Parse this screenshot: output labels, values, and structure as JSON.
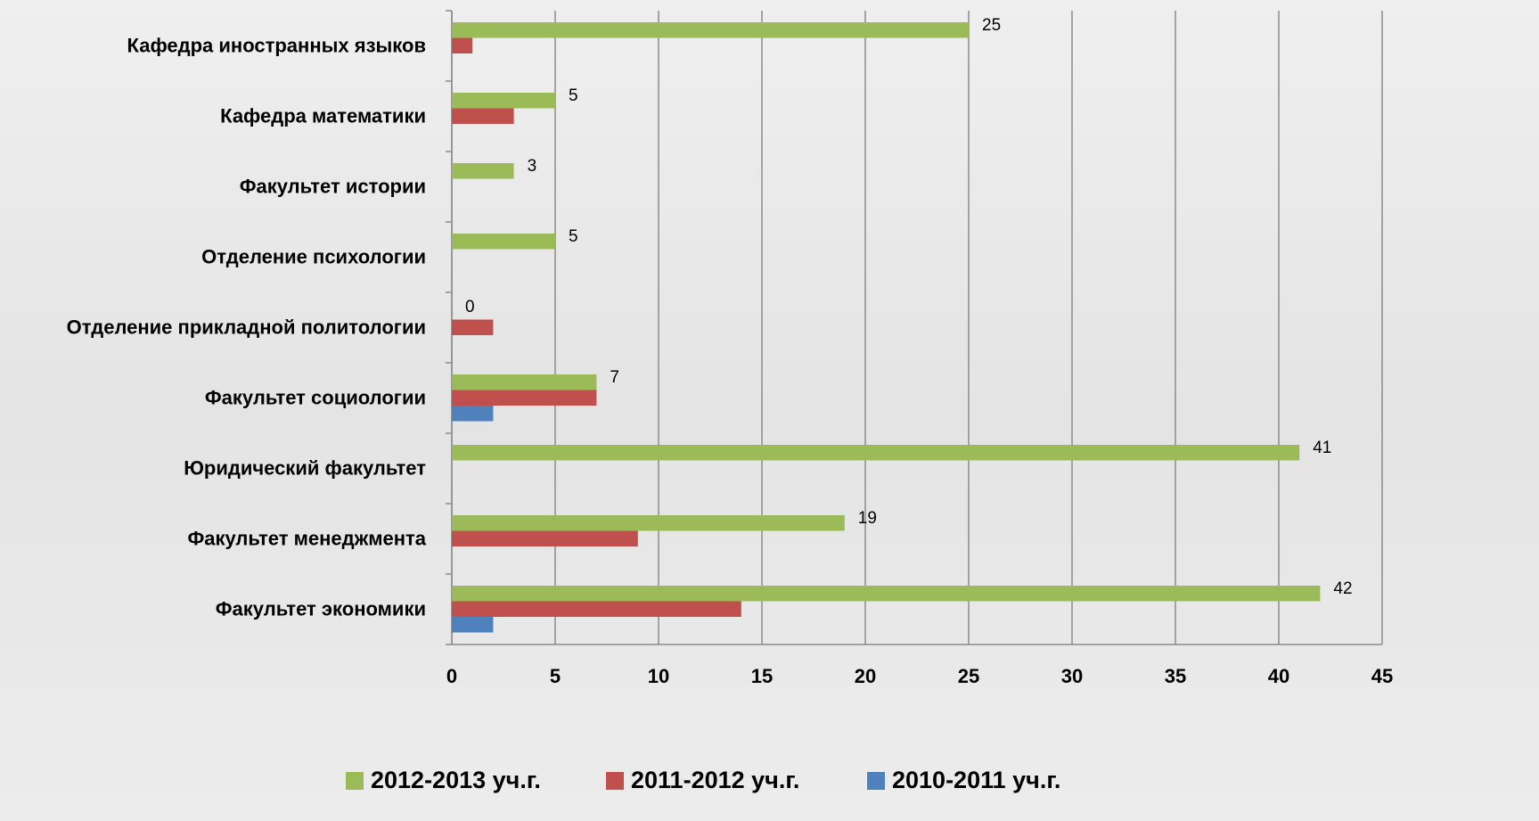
{
  "chart_data": {
    "type": "barh",
    "categories": [
      "Кафедра иностранных языков",
      "Кафедра математики",
      "Факультет истории",
      "Отделение психологии",
      "Отделение прикладной политологии",
      "Факультет социологии",
      "Юридический факультет",
      "Факультет менеджмента",
      "Факультет экономики"
    ],
    "series": [
      {
        "name": "2012-2013 уч.г.",
        "color": "#9bbb59",
        "values": [
          25,
          5,
          3,
          5,
          0,
          7,
          41,
          19,
          42
        ]
      },
      {
        "name": "2011-2012 уч.г.",
        "color": "#c0504d",
        "values": [
          1,
          3,
          0,
          0,
          2,
          7,
          0,
          9,
          14
        ]
      },
      {
        "name": "2010-2011 уч.г.",
        "color": "#4f81bd",
        "values": [
          0,
          0,
          0,
          0,
          0,
          2,
          0,
          0,
          2
        ]
      }
    ],
    "xlim": [
      0,
      45
    ],
    "xticks": [
      0,
      5,
      10,
      15,
      20,
      25,
      30,
      35,
      40,
      45
    ],
    "grid": true,
    "legend": "bottom"
  }
}
